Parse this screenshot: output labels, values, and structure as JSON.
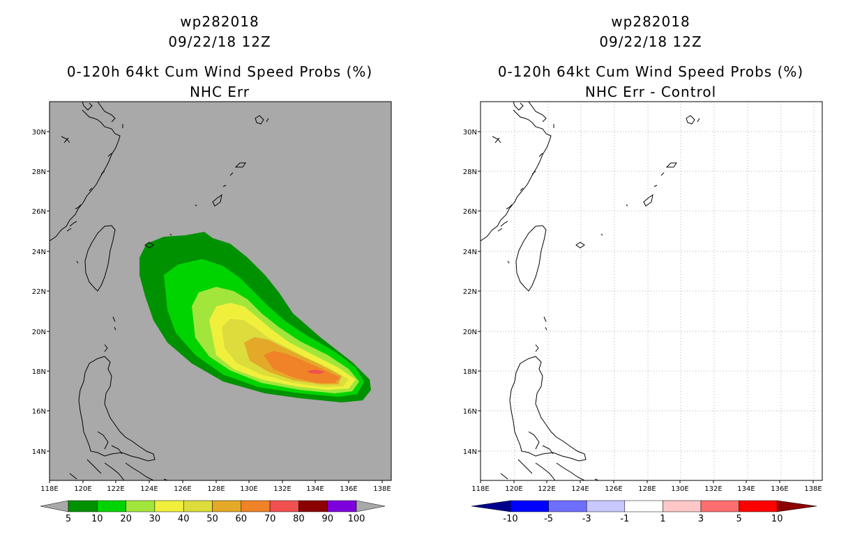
{
  "left_panel": {
    "storm_id": "wp282018",
    "datetime": "09/22/18 12Z",
    "product": "0-120h 64kt Cum Wind Speed Probs (%)",
    "subtitle": "NHC Err",
    "background_color": "#a9a9a9",
    "colorbar": {
      "labels": [
        "5",
        "10",
        "20",
        "30",
        "40",
        "50",
        "60",
        "70",
        "80",
        "90",
        "100"
      ],
      "colors": [
        "#009100",
        "#00d400",
        "#a2e63c",
        "#f0f03c",
        "#dcdc3c",
        "#e4a928",
        "#f08228",
        "#f05050",
        "#8b0000",
        "#7d00dc"
      ]
    }
  },
  "right_panel": {
    "storm_id": "wp282018",
    "datetime": "09/22/18 12Z",
    "product": "0-120h 64kt Cum Wind Speed Probs (%)",
    "subtitle": "NHC Err - Control",
    "background_color": "#ffffff",
    "colorbar": {
      "labels": [
        "-10",
        "-5",
        "-3",
        "-1",
        "1",
        "3",
        "5",
        "10"
      ],
      "colors": [
        "#00008c",
        "#0000ff",
        "#6e6eff",
        "#c8c8ff",
        "#ffffff",
        "#ffc8c8",
        "#ff6e6e",
        "#ff0000",
        "#8c0000"
      ]
    }
  },
  "axes": {
    "lon_labels": [
      "118E",
      "120E",
      "122E",
      "124E",
      "126E",
      "128E",
      "130E",
      "132E",
      "134E",
      "136E",
      "138E"
    ],
    "lat_labels": [
      "30N",
      "28N",
      "26N",
      "24N",
      "22N",
      "20N",
      "18N",
      "16N",
      "14N"
    ]
  },
  "contour_levels": [
    5,
    10,
    20,
    30,
    40,
    50,
    60,
    70
  ]
}
